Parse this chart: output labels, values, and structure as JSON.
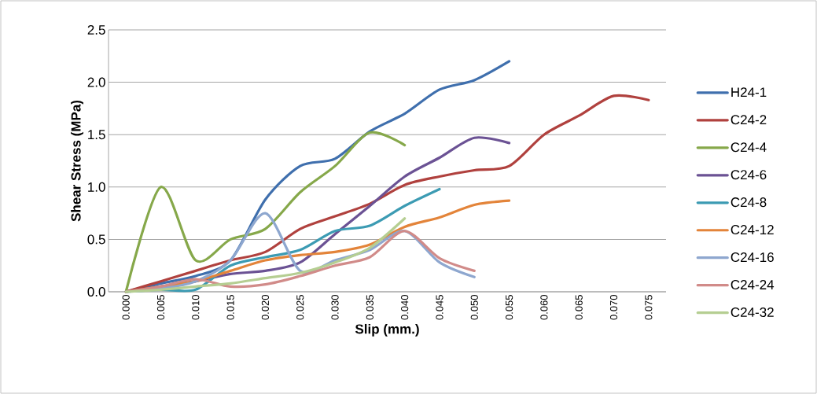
{
  "chart_data": {
    "type": "line",
    "xlabel": "Slip (mm.)",
    "ylabel": "Shear Stress (MPa)",
    "categories": [
      "0.000",
      "0.005",
      "0.010",
      "0.015",
      "0.020",
      "0.025",
      "0.030",
      "0.035",
      "0.040",
      "0.045",
      "0.050",
      "0.055",
      "0.060",
      "0.065",
      "0.070",
      "0.075"
    ],
    "ylim": [
      0,
      2.5
    ],
    "yticks": [
      {
        "value": 0,
        "label": "0.0"
      },
      {
        "value": 0.5,
        "label": "0.5"
      },
      {
        "value": 1,
        "label": "1.0"
      },
      {
        "value": 1.5,
        "label": "1.5"
      },
      {
        "value": 2,
        "label": "2.0"
      },
      {
        "value": 2.5,
        "label": "2.5"
      }
    ],
    "grid": "y",
    "legend": "right",
    "series": [
      {
        "name": "H24-1",
        "color": "#3f6fad",
        "values": [
          0,
          0.08,
          0.15,
          0.3,
          0.88,
          1.2,
          1.27,
          1.53,
          1.7,
          1.93,
          2.02,
          2.2,
          null,
          null,
          null,
          null
        ]
      },
      {
        "name": "C24-2",
        "color": "#b0413e",
        "values": [
          0,
          0.1,
          0.2,
          0.3,
          0.38,
          0.6,
          0.72,
          0.84,
          1.02,
          1.1,
          1.16,
          1.2,
          1.5,
          1.68,
          1.87,
          1.83
        ]
      },
      {
        "name": "C24-4",
        "color": "#86a84a",
        "values": [
          0,
          1.0,
          0.3,
          0.5,
          0.6,
          0.95,
          1.2,
          1.52,
          1.4,
          null,
          null,
          null,
          null,
          null,
          null,
          null
        ]
      },
      {
        "name": "C24-6",
        "color": "#6b5294",
        "values": [
          0,
          0.05,
          0.1,
          0.17,
          0.2,
          0.28,
          0.55,
          0.82,
          1.1,
          1.28,
          1.47,
          1.42,
          null,
          null,
          null,
          null
        ]
      },
      {
        "name": "C24-8",
        "color": "#3c9bb3",
        "values": [
          0,
          0.02,
          0.02,
          0.25,
          0.33,
          0.4,
          0.58,
          0.63,
          0.82,
          0.98,
          null,
          null,
          null,
          null,
          null,
          null
        ]
      },
      {
        "name": "C24-12",
        "color": "#e3843a",
        "values": [
          0,
          0.05,
          0.1,
          0.2,
          0.3,
          0.35,
          0.38,
          0.45,
          0.62,
          0.71,
          0.83,
          0.87,
          null,
          null,
          null,
          null
        ]
      },
      {
        "name": "C24-16",
        "color": "#8ea7cf",
        "values": [
          0,
          0.03,
          0.1,
          0.3,
          0.75,
          0.2,
          0.3,
          0.4,
          0.58,
          0.28,
          0.14,
          null,
          null,
          null,
          null,
          null
        ]
      },
      {
        "name": "C24-24",
        "color": "#d18b89",
        "values": [
          0,
          0.05,
          0.12,
          0.05,
          0.07,
          0.15,
          0.25,
          0.33,
          0.58,
          0.32,
          0.2,
          null,
          null,
          null,
          null,
          null
        ]
      },
      {
        "name": "C24-32",
        "color": "#b5ce92",
        "values": [
          0,
          0.02,
          0.05,
          0.08,
          0.13,
          0.18,
          0.28,
          0.42,
          0.7,
          null,
          null,
          null,
          null,
          null,
          null,
          null
        ]
      }
    ]
  }
}
